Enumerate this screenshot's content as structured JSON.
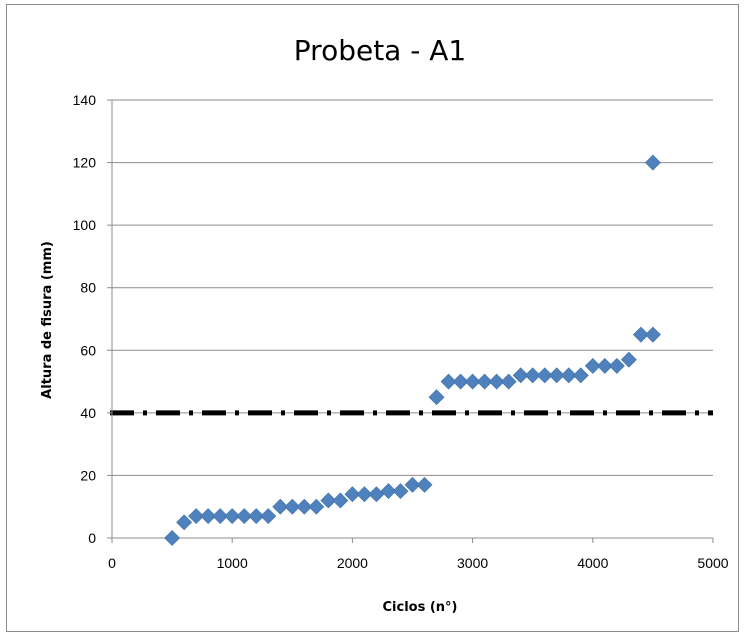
{
  "chart_data": {
    "type": "scatter",
    "title": "Probeta - A1",
    "xlabel": "Ciclos (n°)",
    "ylabel": "Altura de fisura (mm)",
    "xlim": [
      0,
      5000
    ],
    "ylim": [
      0,
      140
    ],
    "x_ticks": [
      0,
      1000,
      2000,
      3000,
      4000,
      5000
    ],
    "y_ticks": [
      0,
      20,
      40,
      60,
      80,
      100,
      120,
      140
    ],
    "grid": "horizontal",
    "legend": "none",
    "marker": "diamond",
    "marker_color": "#4f81bd",
    "reference_line": {
      "y": 40,
      "style": "dash-dot",
      "color": "#000000"
    },
    "series": [
      {
        "x": [
          500,
          600,
          700,
          800,
          900,
          1000,
          1100,
          1200,
          1300,
          1400,
          1500,
          1600,
          1700,
          1800,
          1900,
          2000,
          2100,
          2200,
          2300,
          2400,
          2500,
          2600,
          2700,
          2800,
          2900,
          3000,
          3100,
          3200,
          3300,
          3400,
          3500,
          3600,
          3700,
          3800,
          3900,
          4000,
          4100,
          4200,
          4300,
          4400,
          4500,
          4500
        ],
        "y": [
          0,
          5,
          7,
          7,
          7,
          7,
          7,
          7,
          7,
          10,
          10,
          10,
          10,
          12,
          12,
          14,
          14,
          14,
          15,
          15,
          17,
          17,
          45,
          50,
          50,
          50,
          50,
          50,
          50,
          52,
          52,
          52,
          52,
          52,
          52,
          55,
          55,
          55,
          57,
          65,
          65,
          120
        ]
      }
    ]
  }
}
